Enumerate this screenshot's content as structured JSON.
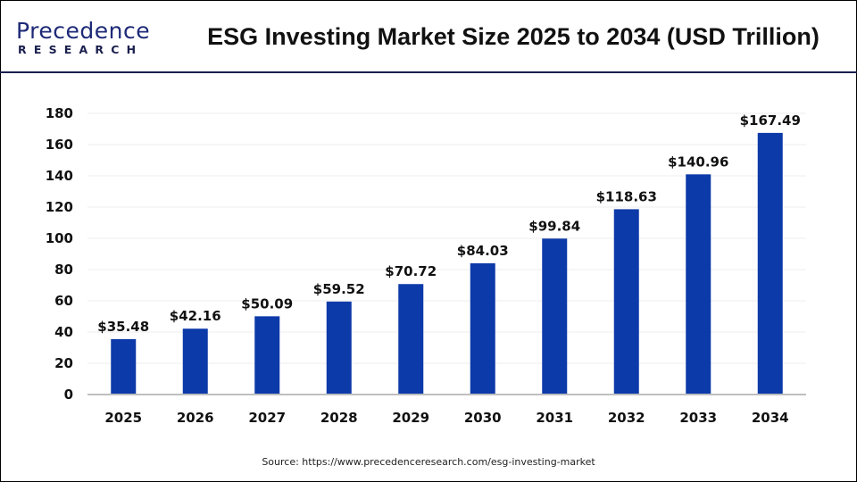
{
  "header": {
    "logo_text_top": "Precedence",
    "logo_text_bottom": "RESEARCH",
    "title": "ESG Investing Market Size 2025 to 2034 (USD Trillion)"
  },
  "source": "Source: https://www.precedenceresearch.com/esg-investing-market",
  "chart_data": {
    "type": "bar",
    "title": "ESG Investing Market Size 2025 to 2034 (USD Trillion)",
    "categories": [
      "2025",
      "2026",
      "2027",
      "2028",
      "2029",
      "2030",
      "2031",
      "2032",
      "2033",
      "2034"
    ],
    "values": [
      35.48,
      42.16,
      50.09,
      59.52,
      70.72,
      84.03,
      99.84,
      118.63,
      140.96,
      167.49
    ],
    "data_labels": [
      "$35.48",
      "$42.16",
      "$50.09",
      "$59.52",
      "$70.72",
      "$84.03",
      "$99.84",
      "$118.63",
      "$140.96",
      "$167.49"
    ],
    "yticks": [
      0,
      20,
      40,
      60,
      80,
      100,
      120,
      140,
      160,
      180
    ],
    "ylim": [
      0,
      180
    ],
    "xlabel": "",
    "ylabel": "",
    "grid": true,
    "bar_color": "#0d3aa9",
    "grid_color": "#eeeeee",
    "axis_color": "#bfbfbf"
  }
}
